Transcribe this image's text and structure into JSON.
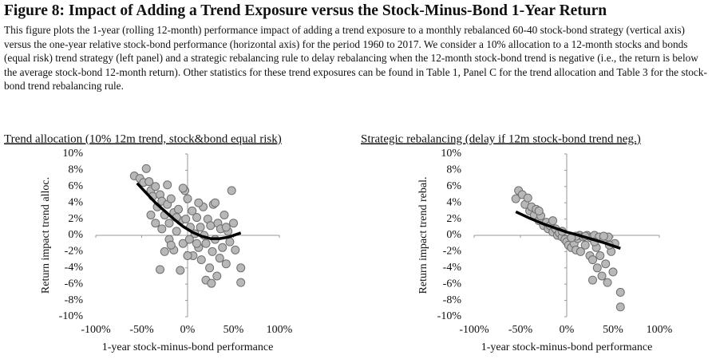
{
  "figure_title": "Figure 8: Impact of Adding a Trend Exposure versus the Stock-Minus-Bond 1-Year Return",
  "caption": "This figure plots the 1-year (rolling 12-month) performance impact of adding a trend exposure to a monthly rebalanced 60-40 stock-bond strategy (vertical axis) versus the one-year relative stock-bond performance (horizontal axis) for the period 1960 to 2017. We consider a 10% allocation to a 12-month stocks and bonds (equal risk) trend strategy (left panel) and a strategic rebalancing rule to delay rebalancing when the 12-month stock-bond trend is negative (i.e., the return is below the average stock-bond 12-month return). Other statistics for these trend exposures can be found in Table 1, Panel C for the trend allocation and Table 3 for the stock-bond trend rebalancing rule.",
  "chart_data": [
    {
      "type": "scatter",
      "title": "Trend allocation (10% 12m trend, stock&bond equal risk)",
      "x_label": "1-year stock-minus-bond performance",
      "y_label": "Return impact trend alloc.",
      "xlim": [
        -100,
        100
      ],
      "ylim": [
        -10,
        10
      ],
      "xticks": [
        {
          "value": -100,
          "label": "-100%"
        },
        {
          "value": -50,
          "label": "-50%"
        },
        {
          "value": 0,
          "label": "0%"
        },
        {
          "value": 50,
          "label": "50%"
        },
        {
          "value": 100,
          "label": "100%"
        }
      ],
      "yticks": [
        {
          "value": -10,
          "label": "-10%"
        },
        {
          "value": -8,
          "label": "-8%"
        },
        {
          "value": -6,
          "label": "-6%"
        },
        {
          "value": -4,
          "label": "-4%"
        },
        {
          "value": -2,
          "label": "-2%"
        },
        {
          "value": 0,
          "label": "0%"
        },
        {
          "value": 2,
          "label": "2%"
        },
        {
          "value": 4,
          "label": "4%"
        },
        {
          "value": 6,
          "label": "6%"
        },
        {
          "value": 8,
          "label": "8%"
        },
        {
          "value": 10,
          "label": "10%"
        }
      ],
      "series": [
        {
          "style": "markers",
          "color": "#b8b8b8",
          "x": [
            -58,
            -52,
            -45,
            -48,
            -42,
            -40,
            -38,
            -35,
            -33,
            -30,
            -28,
            -25,
            -22,
            -20,
            -18,
            -15,
            -12,
            -10,
            -8,
            -5,
            -3,
            -2,
            0,
            2,
            3,
            5,
            6,
            8,
            10,
            12,
            14,
            15,
            17,
            18,
            20,
            22,
            24,
            25,
            27,
            28,
            30,
            32,
            33,
            35,
            36,
            38,
            40,
            42,
            44,
            46,
            48,
            50,
            52,
            58,
            58,
            -30,
            -25,
            -20,
            -15,
            -35,
            -8,
            -5,
            20,
            26,
            10,
            0,
            -12,
            -28,
            -40,
            -18,
            30,
            42,
            12,
            -22
          ],
          "values": [
            7.3,
            7.0,
            8.2,
            6.5,
            6.6,
            5.5,
            4.8,
            6.0,
            3.5,
            5.0,
            4.2,
            2.5,
            3.8,
            1.5,
            4.5,
            2.8,
            0.5,
            3.2,
            1.8,
            -1.0,
            5.5,
            2.0,
            4.5,
            -0.5,
            1.0,
            3.0,
            -2.5,
            0.2,
            2.2,
            -1.5,
            1.0,
            -3.0,
            3.5,
            0.0,
            -1.0,
            2.0,
            -4.0,
            1.2,
            -2.0,
            3.8,
            -0.5,
            -5.0,
            1.5,
            -2.8,
            0.8,
            -1.5,
            2.5,
            -3.5,
            0.5,
            -0.8,
            5.5,
            1.5,
            -1.8,
            -4.0,
            -5.8,
            -4.2,
            -2.0,
            -0.5,
            -1.8,
            1.5,
            -4.3,
            5.8,
            -5.5,
            -5.9,
            -1.0,
            -2.5,
            2.2,
            0.8,
            2.5,
            -1.2,
            4.0,
            1.0,
            4.0,
            6.2
          ]
        },
        {
          "style": "line",
          "color": "#000000",
          "x": [
            -55,
            -45,
            -35,
            -25,
            -15,
            -5,
            5,
            15,
            25,
            35,
            45,
            58
          ],
          "values": [
            6.4,
            5.2,
            4.0,
            3.0,
            2.0,
            1.1,
            0.4,
            -0.1,
            -0.4,
            -0.4,
            -0.2,
            0.3
          ]
        }
      ]
    },
    {
      "type": "scatter",
      "title": "Strategic rebalancing (delay if 12m stock-bond trend neg.)",
      "x_label": "1-year stock-minus-bond performance",
      "y_label": "Return impact trend rebal.",
      "xlim": [
        -100,
        100
      ],
      "ylim": [
        -10,
        10
      ],
      "xticks": [
        {
          "value": -100,
          "label": "-100%"
        },
        {
          "value": -50,
          "label": "-50%"
        },
        {
          "value": 0,
          "label": "0%"
        },
        {
          "value": 50,
          "label": "50%"
        },
        {
          "value": 100,
          "label": "100%"
        }
      ],
      "yticks": [
        {
          "value": -10,
          "label": "-10%"
        },
        {
          "value": -8,
          "label": "-8%"
        },
        {
          "value": -6,
          "label": "-6%"
        },
        {
          "value": -4,
          "label": "-4%"
        },
        {
          "value": -2,
          "label": "-2%"
        },
        {
          "value": 0,
          "label": "0%"
        },
        {
          "value": 2,
          "label": "2%"
        },
        {
          "value": 4,
          "label": "4%"
        },
        {
          "value": 6,
          "label": "6%"
        },
        {
          "value": 8,
          "label": "8%"
        },
        {
          "value": 10,
          "label": "10%"
        }
      ],
      "series": [
        {
          "style": "markers",
          "color": "#b8b8b8",
          "x": [
            -55,
            -52,
            -48,
            -45,
            -42,
            -40,
            -38,
            -35,
            -33,
            -30,
            -28,
            -25,
            -22,
            -20,
            -18,
            -15,
            -12,
            -10,
            -8,
            -5,
            -2,
            0,
            2,
            5,
            8,
            10,
            12,
            14,
            15,
            18,
            20,
            22,
            25,
            26,
            28,
            30,
            32,
            33,
            35,
            36,
            38,
            40,
            42,
            44,
            45,
            48,
            50,
            52,
            58,
            58,
            -15,
            -5,
            10,
            20,
            30,
            40,
            46,
            -30,
            5,
            28
          ],
          "values": [
            4.5,
            5.5,
            5.0,
            3.8,
            4.6,
            3.0,
            3.5,
            2.5,
            3.2,
            1.8,
            2.4,
            1.2,
            1.6,
            0.8,
            1.2,
            0.4,
            0.8,
            0.0,
            0.3,
            -0.2,
            -0.5,
            -0.8,
            -1.2,
            -1.5,
            -1.0,
            -1.8,
            -0.4,
            0.0,
            -2.0,
            -0.2,
            -1.2,
            0.0,
            -2.5,
            -0.3,
            -3.0,
            0.0,
            -1.5,
            -4.0,
            -0.2,
            -2.5,
            -5.0,
            -0.5,
            -3.5,
            -5.8,
            -0.2,
            -2.0,
            -4.5,
            -1.0,
            -7.0,
            -8.8,
            1.8,
            0.5,
            -0.1,
            -0.1,
            -0.8,
            -0.1,
            -1.2,
            3.0,
            -0.3,
            -5.5
          ]
        },
        {
          "style": "line",
          "color": "#000000",
          "x": [
            -55,
            -40,
            -25,
            -10,
            0,
            10,
            25,
            40,
            58
          ],
          "values": [
            2.9,
            2.1,
            1.4,
            0.8,
            0.4,
            0.1,
            -0.4,
            -0.9,
            -1.6
          ]
        }
      ]
    }
  ]
}
